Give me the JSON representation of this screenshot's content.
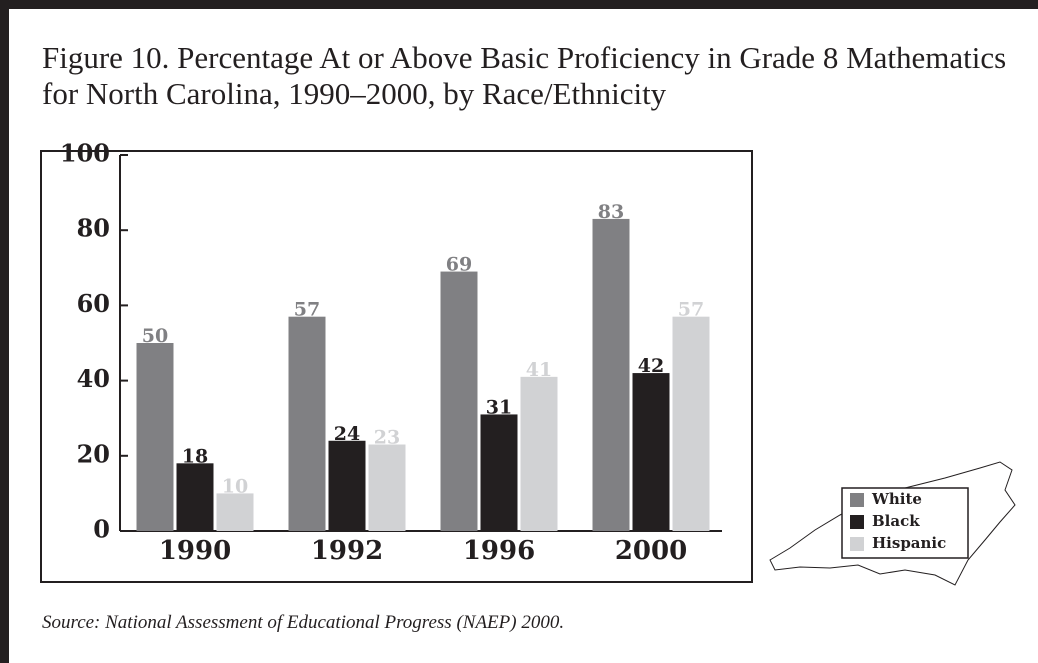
{
  "chart_data": {
    "type": "bar",
    "title": "Figure 10. Percentage At or Above Basic Proficiency in Grade 8 Mathematics for North Carolina, 1990–2000, by Race/Ethnicity",
    "categories": [
      "1990",
      "1992",
      "1996",
      "2000"
    ],
    "series": [
      {
        "name": "White",
        "color": "#808083",
        "values": [
          50,
          57,
          69,
          83
        ]
      },
      {
        "name": "Black",
        "color": "#231f20",
        "values": [
          18,
          24,
          31,
          42
        ]
      },
      {
        "name": "Hispanic",
        "color": "#d1d2d4",
        "values": [
          10,
          23,
          41,
          57
        ]
      }
    ],
    "ylim": [
      0,
      100
    ],
    "yticks": [
      0,
      20,
      40,
      60,
      80,
      100
    ],
    "source": "Source: National Assessment of Educational Progress (NAEP) 2000."
  }
}
